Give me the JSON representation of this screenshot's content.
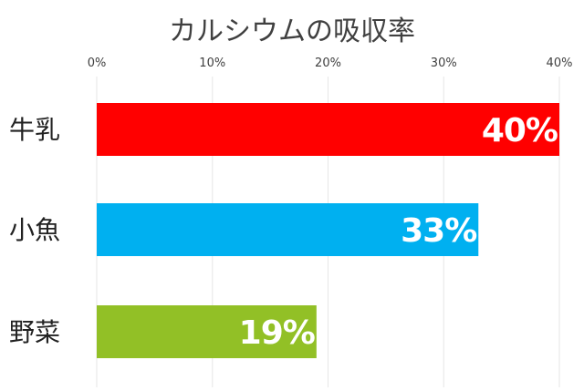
{
  "chart_data": {
    "type": "bar",
    "orientation": "horizontal",
    "title": "カルシウムの吸収率",
    "categories": [
      "牛乳",
      "小魚",
      "野菜"
    ],
    "values": [
      40,
      33,
      19
    ],
    "value_labels": [
      "40%",
      "33%",
      "19%"
    ],
    "colors": [
      "#ff0000",
      "#00b0f0",
      "#92c026"
    ],
    "xlim": [
      0,
      40
    ],
    "xticks": [
      0,
      10,
      20,
      30,
      40
    ],
    "xtick_labels": [
      "0%",
      "10%",
      "20%",
      "30%",
      "40%"
    ],
    "x_axis_position": "top",
    "grid": true,
    "legend": "none",
    "xlabel": "",
    "ylabel": ""
  }
}
